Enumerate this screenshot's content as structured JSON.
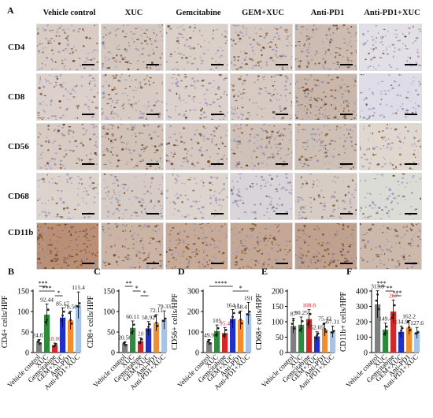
{
  "figure": {
    "panel_a_label": "A",
    "columns": [
      "Vehicle control",
      "XUC",
      "Gemcitabine",
      "GEM+XUC",
      "Anti-PD1",
      "Anti-PD1+XUC"
    ],
    "rows": [
      "CD4",
      "CD8",
      "CD56",
      "CD68",
      "CD11b"
    ]
  },
  "chart_data": [
    {
      "panel": "B",
      "type": "bar",
      "ylabel": "CD4+ cells/HPF",
      "ylim": [
        0,
        150
      ],
      "yticks": [
        0,
        50,
        100,
        150
      ],
      "categories": [
        "Vehicle control",
        "XUC",
        "Gemcitabine",
        "GEM+XUC",
        "Anti-PD1",
        "Anti-PD1+XUC"
      ],
      "values": [
        24.83,
        92.44,
        18.0,
        85.17,
        78.56,
        115.4
      ],
      "value_labels": [
        "24.83",
        "92.44",
        "18.00",
        "85.17",
        "78.56",
        "115.4"
      ],
      "colors": [
        "#7f7f7f",
        "#2e8b3e",
        "#d62728",
        "#2030c8",
        "#f28e2b",
        "#a7c4e8"
      ],
      "significance": [
        {
          "from": 0,
          "to": 1,
          "label": "***"
        },
        {
          "from": 0,
          "to": 2,
          "label": "***"
        },
        {
          "from": 2,
          "to": 3,
          "label": "*"
        }
      ]
    },
    {
      "panel": "C",
      "type": "bar",
      "ylabel": "CD8+ cells/HPF",
      "ylim": [
        0,
        150
      ],
      "yticks": [
        0,
        50,
        100,
        150
      ],
      "categories": [
        "Vehicle control",
        "XUC",
        "Gemcitabine",
        "GEM+XUC",
        "Anti-PD1",
        "Anti-PD1+XUC"
      ],
      "values": [
        20.56,
        60.11,
        28,
        58.92,
        72.11,
        79.33
      ],
      "value_labels": [
        "20.56",
        "60.11",
        "28",
        "58.92",
        "72.11",
        "79.33"
      ],
      "colors": [
        "#7f7f7f",
        "#2e8b3e",
        "#d62728",
        "#2030c8",
        "#f28e2b",
        "#a7c4e8"
      ],
      "significance": [
        {
          "from": 0,
          "to": 1,
          "label": "**"
        },
        {
          "from": 1,
          "to": 2,
          "label": "*"
        },
        {
          "from": 2,
          "to": 3,
          "label": "*"
        }
      ]
    },
    {
      "panel": "D",
      "type": "bar",
      "ylabel": "CD56+ cells/HPF",
      "ylim": [
        0,
        300
      ],
      "yticks": [
        0,
        100,
        200,
        300
      ],
      "categories": [
        "Vehicle control",
        "XUC",
        "Gemcitabine",
        "GEM+XUC",
        "Anti-PD1",
        "Anti-PD1+XUC"
      ],
      "values": [
        49.9,
        105,
        95.4,
        164.1,
        158.4,
        191
      ],
      "value_labels": [
        "49.9",
        "105",
        "95.4",
        "164.1",
        "158.4",
        "191"
      ],
      "colors": [
        "#7f7f7f",
        "#2e8b3e",
        "#d62728",
        "#2030c8",
        "#f28e2b",
        "#a7c4e8"
      ],
      "significance": [
        {
          "from": 0,
          "to": 3,
          "label": "****"
        },
        {
          "from": 3,
          "to": 5,
          "label": "*"
        }
      ]
    },
    {
      "panel": "E",
      "type": "bar",
      "ylabel": "CD68+ cells/HPF",
      "ylim": [
        0,
        200
      ],
      "yticks": [
        0,
        50,
        100,
        150,
        200
      ],
      "categories": [
        "Vehicle control",
        "XUC",
        "Gemcitabine",
        "GEM+XUC",
        "Anti-PD1",
        "Anti-PD1+XUC"
      ],
      "values": [
        87,
        90.25,
        108.8,
        52.69,
        75.42,
        67.31
      ],
      "value_labels": [
        "87",
        "90.25",
        "108.8",
        "52.69",
        "75.42",
        "67.31"
      ],
      "colors": [
        "#7f7f7f",
        "#2e8b3e",
        "#d62728",
        "#2030c8",
        "#f28e2b",
        "#a7c4e8"
      ],
      "significance": []
    },
    {
      "panel": "F",
      "type": "bar",
      "ylabel": "CD11b+ cells/HPF",
      "ylim": [
        0,
        400
      ],
      "yticks": [
        0,
        100,
        200,
        300,
        400
      ],
      "categories": [
        "Vehicle control",
        "XUC",
        "Gemcitabine",
        "GEM+XUC",
        "Anti-PD1",
        "Anti-PD1+XUC"
      ],
      "values": [
        313.8,
        149.4,
        267,
        134.9,
        162.2,
        127.6
      ],
      "value_labels": [
        "313.8",
        "149.4",
        "267",
        "134.9",
        "162.2",
        "127.6"
      ],
      "colors": [
        "#7f7f7f",
        "#2e8b3e",
        "#d62728",
        "#2030c8",
        "#f28e2b",
        "#a7c4e8"
      ],
      "significance": [
        {
          "from": 0,
          "to": 1,
          "label": "***"
        },
        {
          "from": 1,
          "to": 2,
          "label": "**"
        },
        {
          "from": 2,
          "to": 3,
          "label": "***"
        }
      ]
    }
  ]
}
